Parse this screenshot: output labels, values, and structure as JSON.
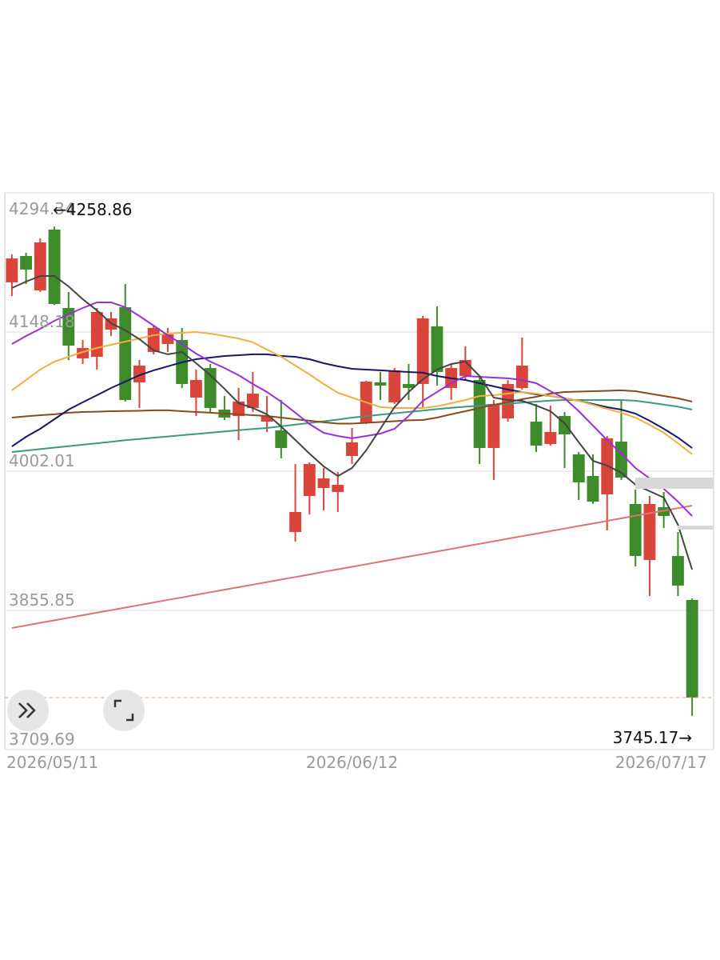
{
  "chart_data": {
    "type": "candlestick",
    "categories": [
      "2026/05/11",
      null,
      null,
      null,
      null,
      null,
      null,
      null,
      null,
      null,
      null,
      null,
      null,
      null,
      null,
      null,
      null,
      null,
      null,
      null,
      null,
      null,
      null,
      null,
      "2026/06/12",
      null,
      null,
      null,
      null,
      null,
      null,
      null,
      null,
      null,
      null,
      null,
      null,
      null,
      null,
      null,
      null,
      null,
      null,
      null,
      null,
      null,
      null,
      null,
      "2026/07/17"
    ],
    "open": [
      4200.3,
      4228.0,
      4191.9,
      4255.7,
      4173.4,
      4120.5,
      4122.1,
      4150.7,
      4174.2,
      4095.3,
      4127.2,
      4135.6,
      4139.8,
      4079.3,
      4110.4,
      4066.7,
      4060.0,
      4068.4,
      4054.1,
      4044.9,
      3938.2,
      3976.0,
      3984.4,
      3980.2,
      4018.0,
      4053.2,
      4095.3,
      4074.3,
      4093.6,
      4093.6,
      4154.1,
      4089.4,
      4102.0,
      4097.8,
      4026.4,
      4057.4,
      4089.4,
      4054.1,
      4030.6,
      4060.0,
      4019.7,
      3997.0,
      3977.7,
      4033.1,
      3967.6,
      3908.8,
      3964.2,
      3913.0,
      3866.8
    ],
    "high": [
      4229.7,
      4231.3,
      4246.5,
      4258.86,
      4190.2,
      4139.8,
      4173.4,
      4169.2,
      4198.6,
      4118.8,
      4154.1,
      4152.4,
      4152.4,
      4108.7,
      4114.6,
      4081.0,
      4089.4,
      4106.2,
      4081.0,
      4076.8,
      4009.6,
      4011.3,
      4005.4,
      4001.2,
      4047.4,
      4096.9,
      4106.2,
      4110.4,
      4114.6,
      4165.0,
      4175.1,
      4114.6,
      4133.1,
      4102.0,
      4076.8,
      4097.8,
      4142.3,
      4072.6,
      4070.9,
      4064.2,
      4022.2,
      4019.7,
      4039.0,
      4076.8,
      3982.7,
      3976.0,
      3980.2,
      3938.2,
      3868.5
    ],
    "low": [
      4186.0,
      4198.6,
      4190.2,
      4176.5,
      4118.8,
      4114.6,
      4108.7,
      4144.0,
      4075.1,
      4068.4,
      4124.7,
      4127.2,
      4089.4,
      4060.0,
      4064.2,
      4055.8,
      4034.8,
      4064.2,
      4043.2,
      4015.5,
      3928.1,
      3956.7,
      3960.9,
      3959.2,
      4009.6,
      4051.6,
      4076.8,
      4072.6,
      4076.8,
      4068.4,
      4091.9,
      4076.8,
      4097.8,
      4009.6,
      3992.8,
      4054.1,
      4087.7,
      4022.2,
      4028.9,
      4005.4,
      3971.8,
      3967.6,
      3939.9,
      3992.8,
      3902.1,
      3871.0,
      3942.4,
      3871.0,
      3745.17
    ],
    "close": [
      4225.4,
      4213.7,
      4242.3,
      4177.6,
      4133.9,
      4131.4,
      4169.2,
      4162.5,
      4076.8,
      4112.9,
      4152.4,
      4145.7,
      4093.6,
      4097.8,
      4068.4,
      4058.3,
      4075.1,
      4083.5,
      4060.0,
      4026.4,
      3959.2,
      4009.6,
      3994.5,
      3987.7,
      4032.3,
      4096.1,
      4091.9,
      4107.9,
      4089.4,
      4162.5,
      4106.2,
      4110.4,
      4118.8,
      4026.4,
      4072.6,
      4093.6,
      4112.9,
      4028.9,
      4043.2,
      4040.7,
      3990.3,
      3970.1,
      4036.5,
      3995.3,
      3913.0,
      3967.6,
      3955.0,
      3881.9,
      3764.3
    ],
    "up_color": "#d9453b",
    "down_color": "#3d8b2a",
    "lines": [
      {
        "color": "#e0707a",
        "values": [
          3837.4,
          3840.1,
          3842.8,
          3845.4,
          3848.1,
          3850.8,
          3853.5,
          3856.1,
          3858.8,
          3861.5,
          3864.2,
          3866.9,
          3869.5,
          3872.2,
          3874.9,
          3877.6,
          3880.2,
          3882.9,
          3885.6,
          3888.3,
          3890.9,
          3893.6,
          3896.3,
          3899.0,
          3901.6,
          3904.3,
          3907.0,
          3909.7,
          3912.4,
          3915.0,
          3917.7,
          3920.4,
          3923.1,
          3925.7,
          3928.4,
          3931.1,
          3933.8,
          3936.4,
          3939.1,
          3941.8,
          3944.5,
          3947.1,
          3949.8,
          3952.5,
          3955.2,
          3957.9,
          3960.5,
          3963.2,
          3965.9
        ]
      },
      {
        "color": "#3a9a80",
        "values": [
          4022.2,
          4023.7,
          4025.2,
          4026.8,
          4028.3,
          4029.8,
          4031.3,
          4032.9,
          4034.5,
          4035.9,
          4037.2,
          4038.5,
          4039.8,
          4041.1,
          4042.4,
          4043.7,
          4045.0,
          4046.3,
          4047.4,
          4049.1,
          4050.9,
          4052.7,
          4054.4,
          4056.2,
          4058.3,
          4059.8,
          4061.3,
          4062.8,
          4064.3,
          4065.7,
          4067.2,
          4068.6,
          4069.7,
          4070.8,
          4071.8,
          4072.9,
          4074.0,
          4075.1,
          4076.1,
          4076.8,
          4076.8,
          4076.8,
          4076.8,
          4076.8,
          4076.0,
          4074.0,
          4071.9,
          4069.8,
          4066.7
        ]
      },
      {
        "color": "#8b4a1c",
        "values": [
          4058.3,
          4059.6,
          4060.8,
          4061.7,
          4063.4,
          4064.2,
          4064.5,
          4065.0,
          4065.2,
          4065.4,
          4065.9,
          4065.9,
          4065.0,
          4064.2,
          4063.4,
          4062.5,
          4061.7,
          4060.8,
          4060.0,
          4058.3,
          4056.6,
          4055.0,
          4053.3,
          4052.0,
          4052.0,
          4052.8,
          4053.7,
          4054.5,
          4055.4,
          4055.8,
          4058.3,
          4061.7,
          4065.0,
          4068.4,
          4071.7,
          4074.3,
          4077.6,
          4080.1,
          4083.5,
          4085.2,
          4085.6,
          4086.0,
          4086.4,
          4086.9,
          4086.0,
          4083.5,
          4081.0,
          4078.5,
          4075.1
        ]
      },
      {
        "color": "#16166a",
        "values": [
          4028.0,
          4038.1,
          4046.5,
          4056.6,
          4066.7,
          4074.3,
          4081.8,
          4089.4,
          4096.1,
          4102.8,
          4107.9,
          4112.1,
          4116.3,
          4119.6,
          4121.3,
          4123.0,
          4123.8,
          4124.7,
          4124.7,
          4123.0,
          4122.1,
          4119.6,
          4115.4,
          4112.1,
          4109.5,
          4108.7,
          4107.9,
          4107.0,
          4106.2,
          4105.4,
          4102.0,
          4099.5,
          4097.8,
          4094.4,
          4091.1,
          4087.7,
          4085.2,
          4082.7,
          4081.0,
          4078.5,
          4075.9,
          4072.6,
          4069.2,
          4066.7,
          4062.5,
          4055.0,
          4046.5,
          4037.3,
          4026.4
        ]
      },
      {
        "color": "#f0b040",
        "values": [
          4086.9,
          4097.8,
          4108.7,
          4117.1,
          4122.2,
          4127.2,
          4131.4,
          4134.7,
          4138.1,
          4141.4,
          4144.8,
          4146.5,
          4147.3,
          4148.2,
          4146.5,
          4144.0,
          4141.4,
          4137.3,
          4129.7,
          4122.2,
          4112.9,
          4103.7,
          4093.6,
          4084.3,
          4079.3,
          4074.3,
          4069.2,
          4068.4,
          4068.4,
          4068.4,
          4070.1,
          4073.4,
          4076.8,
          4081.0,
          4081.8,
          4083.5,
          4085.2,
          4083.5,
          4081.0,
          4078.5,
          4075.9,
          4071.7,
          4067.5,
          4063.4,
          4058.3,
          4050.7,
          4042.3,
          4031.4,
          4019.7
        ]
      },
      {
        "color": "#9b30d9",
        "values": [
          4135.6,
          4144.0,
          4151.5,
          4159.9,
          4166.7,
          4173.4,
          4179.3,
          4179.3,
          4174.2,
          4165.0,
          4154.9,
          4144.8,
          4135.6,
          4125.5,
          4117.1,
          4110.4,
          4102.8,
          4093.6,
          4085.2,
          4075.1,
          4063.4,
          4051.6,
          4042.3,
          4039.0,
          4036.5,
          4039.0,
          4041.5,
          4046.5,
          4060.0,
          4075.9,
          4085.2,
          4094.4,
          4102.0,
          4101.1,
          4100.3,
          4099.5,
          4097.8,
          4094.4,
          4086.0,
          4078.5,
          4065.0,
          4049.9,
          4034.8,
          4020.5,
          4005.4,
          3994.5,
          3983.5,
          3970.1,
          3955.0
        ]
      },
      {
        "color": "#444444",
        "values": [
          4194.4,
          4201.1,
          4207.0,
          4207.0,
          4196.1,
          4182.6,
          4170.9,
          4157.4,
          4149.9,
          4140.6,
          4128.9,
          4124.7,
          4127.2,
          4115.4,
          4102.8,
          4088.6,
          4073.4,
          4068.4,
          4061.7,
          4049.0,
          4034.8,
          4020.5,
          4007.1,
          3996.9,
          4005.4,
          4023.9,
          4046.5,
          4069.2,
          4085.2,
          4098.6,
          4108.7,
          4114.6,
          4117.1,
          4102.0,
          4079.3,
          4076.8,
          4075.9,
          4070.9,
          4065.0,
          4052.4,
          4032.3,
          4012.9,
          4007.9,
          4000.4,
          3987.8,
          3981.0,
          3974.3,
          3945.8,
          3898.7
        ]
      }
    ],
    "ylim": [
      3709.69,
      4294.34
    ],
    "yticks": [
      4294.34,
      4148.18,
      4002.01,
      3855.85,
      3709.69
    ],
    "grid": true,
    "annotations": [
      {
        "value": 4258.86,
        "label": "←4258.86"
      },
      {
        "value": 3745.17,
        "label": "3745.17→"
      }
    ]
  }
}
